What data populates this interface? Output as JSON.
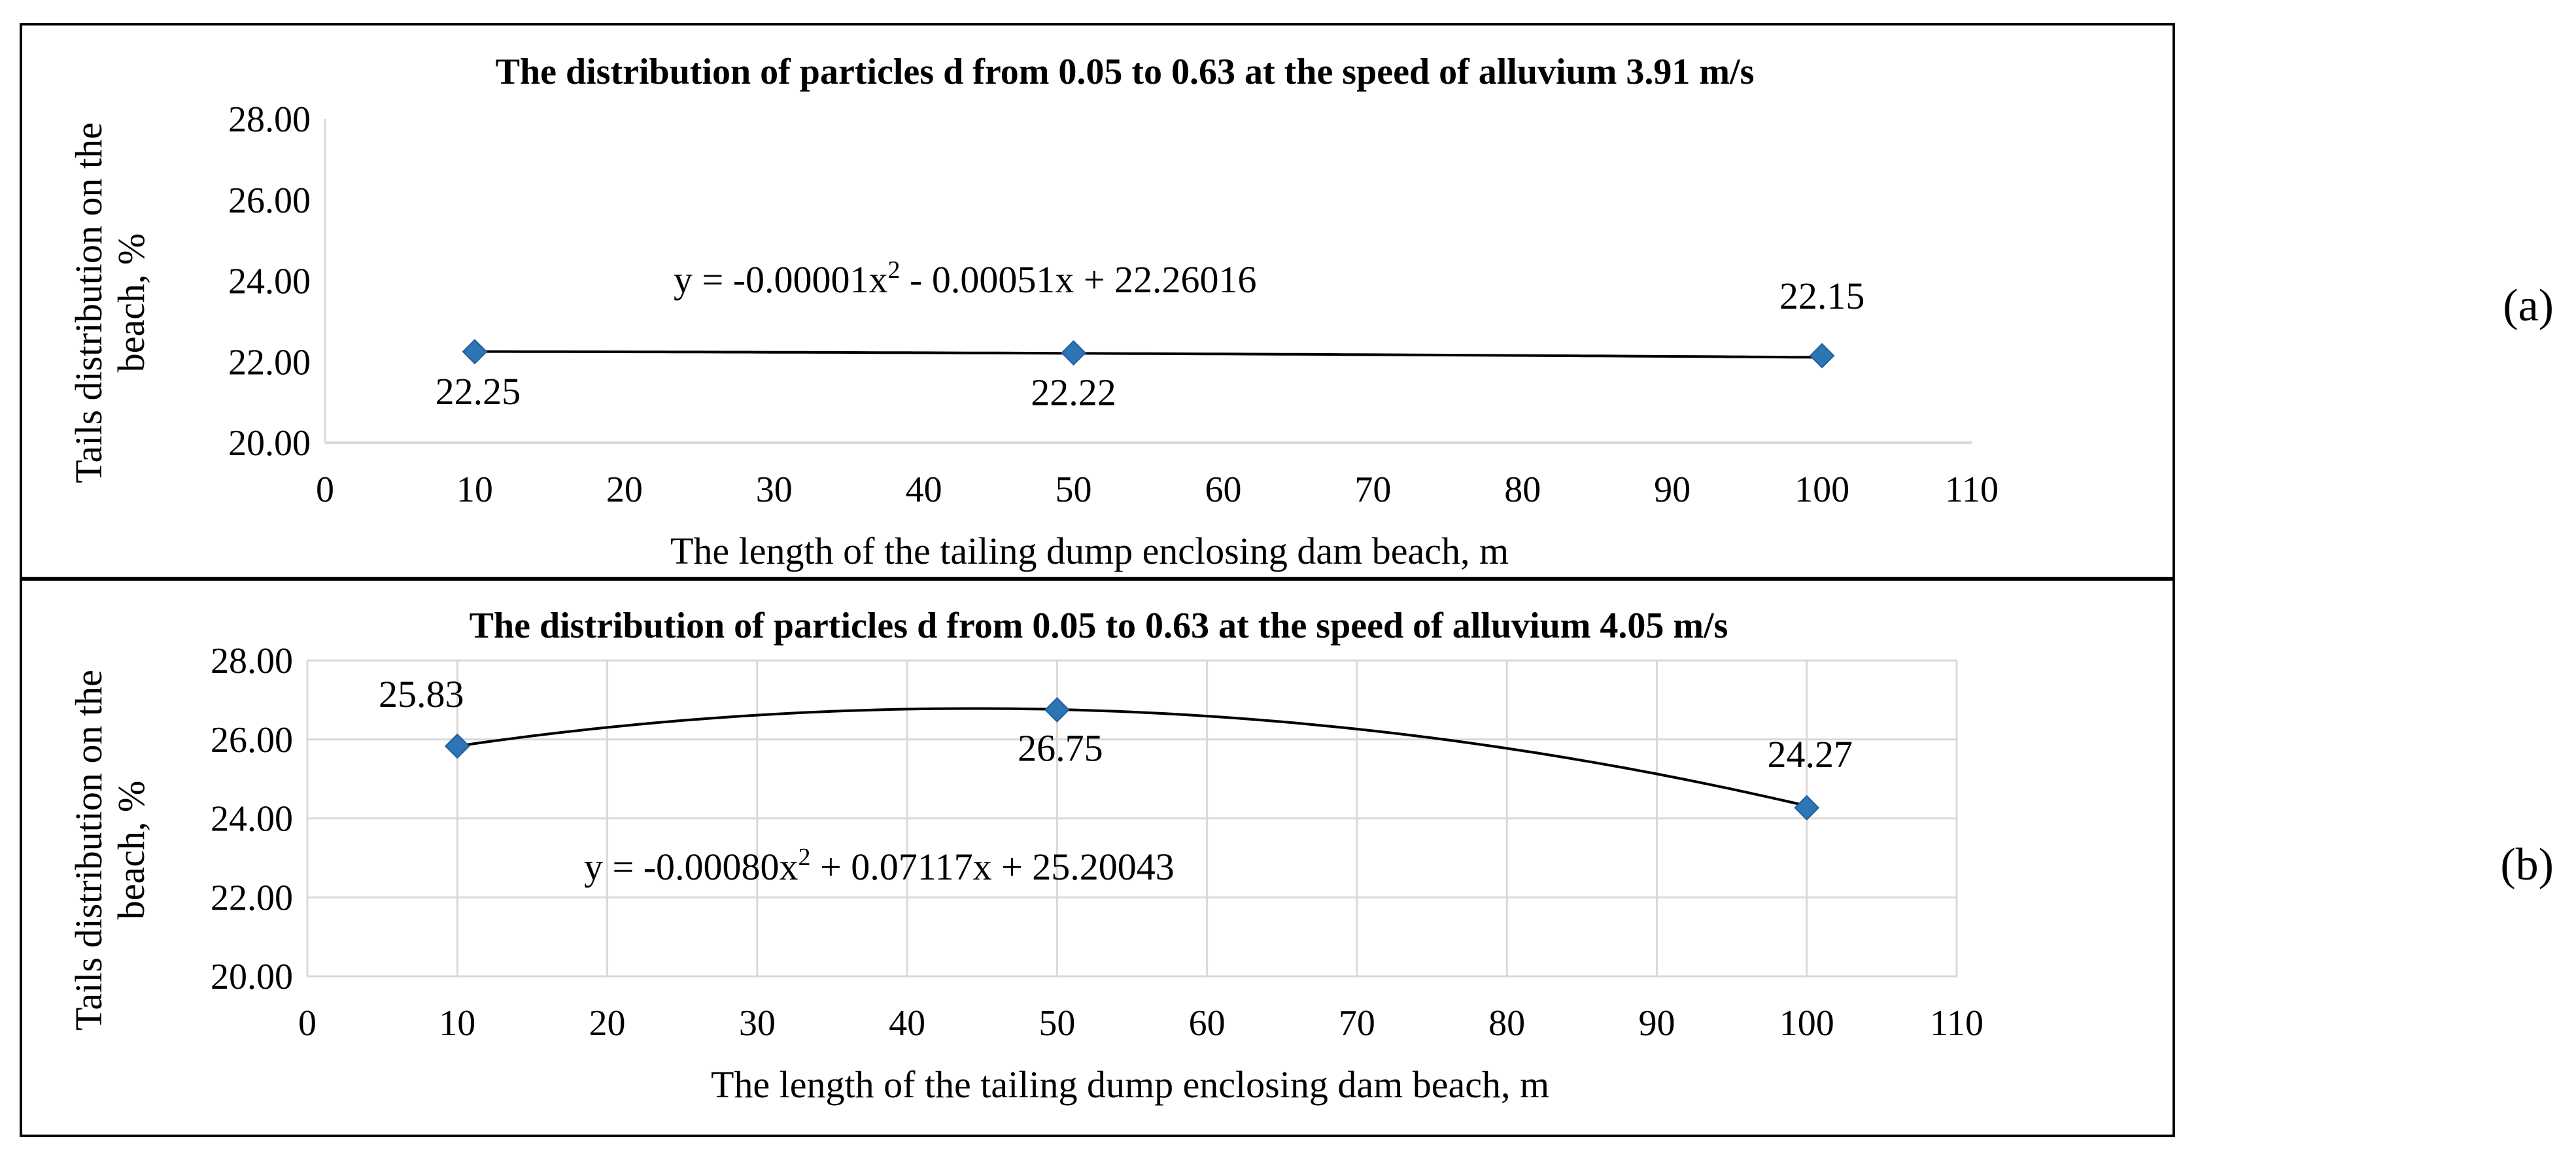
{
  "chart_data": [
    {
      "type": "scatter",
      "panel_label": "(a)",
      "title": "The distribution of particles d from 0.05 to 0.63 at the speed of alluvium 3.91 m/s",
      "xlabel": "The length of the tailing dump enclosing dam beach, m",
      "ylabel": "Tails distribution on the beach, %",
      "xlim": [
        0,
        110
      ],
      "ylim": [
        20,
        28
      ],
      "x_ticks": [
        "0",
        "10",
        "20",
        "30",
        "40",
        "50",
        "60",
        "70",
        "80",
        "90",
        "100",
        "110"
      ],
      "y_ticks": [
        "20.00",
        "22.00",
        "24.00",
        "26.00",
        "28.00"
      ],
      "grid": false,
      "points": [
        {
          "x": 10,
          "y": 22.25,
          "label": "22.25"
        },
        {
          "x": 50,
          "y": 22.22,
          "label": "22.22"
        },
        {
          "x": 100,
          "y": 22.15,
          "label": "22.15"
        }
      ],
      "trendline": {
        "type": "polynomial",
        "order": 2,
        "coefficients": [
          -1e-05,
          -0.00051,
          22.26016
        ]
      },
      "equation": {
        "text": "y = -0.00001x",
        "superscript": "2",
        "rest": " - 0.00051x + 22.26016"
      },
      "marker_color": "#2E75B6"
    },
    {
      "type": "scatter",
      "panel_label": "(b)",
      "title": "The distribution of particles d from 0.05 to 0.63 at the speed of alluvium 4.05 m/s",
      "xlabel": "The length of the tailing dump enclosing dam beach, m",
      "ylabel": "Tails distribution on the beach, %",
      "xlim": [
        0,
        110
      ],
      "ylim": [
        20,
        28
      ],
      "x_ticks": [
        "0",
        "10",
        "20",
        "30",
        "40",
        "50",
        "60",
        "70",
        "80",
        "90",
        "100",
        "110"
      ],
      "y_ticks": [
        "20.00",
        "22.00",
        "24.00",
        "26.00",
        "28.00"
      ],
      "grid": true,
      "points": [
        {
          "x": 10,
          "y": 25.83,
          "label": "25.83"
        },
        {
          "x": 50,
          "y": 26.75,
          "label": "26.75"
        },
        {
          "x": 100,
          "y": 24.27,
          "label": "24.27"
        }
      ],
      "trendline": {
        "type": "polynomial",
        "order": 2,
        "coefficients": [
          -0.0008,
          0.07117,
          25.20043
        ]
      },
      "equation": {
        "text": "y = -0.00080x",
        "superscript": "2",
        "rest": " + 0.07117x + 25.20043"
      },
      "marker_color": "#2E75B6"
    }
  ]
}
